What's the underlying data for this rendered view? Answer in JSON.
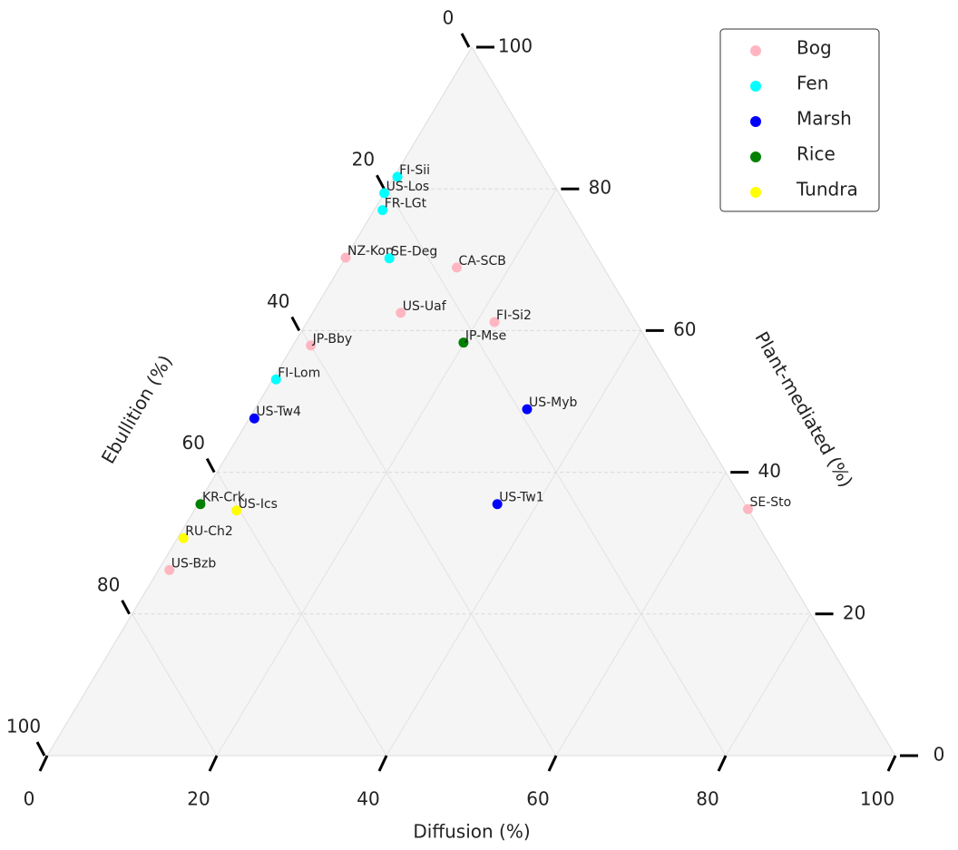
{
  "chart_data": {
    "type": "ternary",
    "bottom_axis_label": "Diffusion (%)",
    "right_axis_label": "Plant-mediated (%)",
    "left_axis_label": "Ebullition (%)",
    "ticks": [
      0,
      20,
      40,
      60,
      80,
      100
    ],
    "grid": true,
    "legend": "upper right",
    "series": [
      {
        "name": "Bog",
        "color": "#ffb6c1",
        "labels": [
          "NZ-Kop",
          "CA-SCB",
          "US-Uaf",
          "FI-Si2",
          "JP-Bby",
          "SE-Sto",
          "US-Bzb"
        ],
        "diffusion": [
          0,
          13.8,
          10.4,
          22.1,
          2.1,
          65.2,
          1.3
        ],
        "plant_mediated": [
          70.3,
          68.9,
          62.5,
          61.2,
          57.9,
          34.8,
          26.2
        ],
        "ebullition": [
          29.7,
          17.3,
          27.1,
          16.7,
          40,
          0,
          72.5
        ]
      },
      {
        "name": "Fen",
        "color": "#00ffff",
        "labels": [
          "FI-Sii",
          "US-Los",
          "FR-LGt",
          "SE-Deg",
          "FI-Lom"
        ],
        "diffusion": [
          0.4,
          0,
          1,
          5.2,
          0.4
        ],
        "plant_mediated": [
          81.7,
          79.4,
          77,
          70.2,
          53.1
        ],
        "ebullition": [
          17.9,
          20.6,
          22,
          24.6,
          46.5
        ]
      },
      {
        "name": "Marsh",
        "color": "#0000ff",
        "labels": [
          "US-Myb",
          "US-Tw4",
          "US-Tw1"
        ],
        "diffusion": [
          32.1,
          0.6,
          35.3
        ],
        "plant_mediated": [
          48.9,
          47.6,
          35.5
        ],
        "ebullition": [
          19,
          51.8,
          29.2
        ]
      },
      {
        "name": "Rice",
        "color": "#008000",
        "labels": [
          "JP-Mse",
          "KR-Crk"
        ],
        "diffusion": [
          19.9,
          0.3
        ],
        "plant_mediated": [
          58.3,
          35.5
        ],
        "ebullition": [
          21.8,
          64.2
        ]
      },
      {
        "name": "Tundra",
        "color": "#ffff00",
        "labels": [
          "US-Ics",
          "RU-Ch2"
        ],
        "diffusion": [
          5,
          0.7
        ],
        "plant_mediated": [
          34.6,
          30.7
        ],
        "ebullition": [
          60.4,
          68.6
        ]
      }
    ]
  }
}
